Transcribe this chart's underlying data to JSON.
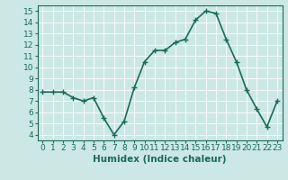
{
  "x": [
    0,
    1,
    2,
    3,
    4,
    5,
    6,
    7,
    8,
    9,
    10,
    11,
    12,
    13,
    14,
    15,
    16,
    17,
    18,
    19,
    20,
    21,
    22,
    23
  ],
  "y": [
    7.8,
    7.8,
    7.8,
    7.3,
    7.0,
    7.3,
    5.5,
    4.0,
    5.2,
    8.2,
    10.5,
    11.5,
    11.5,
    12.2,
    12.5,
    14.2,
    15.0,
    14.8,
    12.5,
    10.5,
    8.0,
    6.3,
    4.7,
    7.0
  ],
  "line_color": "#1a6b5a",
  "marker": "+",
  "bg_color": "#cce8e4",
  "grid_color": "#ffffff",
  "xlabel": "Humidex (Indice chaleur)",
  "ylim": [
    3.5,
    15.5
  ],
  "xlim": [
    -0.5,
    23.5
  ],
  "yticks": [
    4,
    5,
    6,
    7,
    8,
    9,
    10,
    11,
    12,
    13,
    14,
    15
  ],
  "xtick_labels": [
    "0",
    "1",
    "2",
    "3",
    "4",
    "5",
    "6",
    "7",
    "8",
    "9",
    "10",
    "11",
    "12",
    "13",
    "14",
    "15",
    "16",
    "17",
    "18",
    "19",
    "20",
    "21",
    "22",
    "23"
  ],
  "xlabel_fontsize": 7.5,
  "tick_fontsize": 6.5,
  "line_width": 1.2,
  "marker_size": 4
}
